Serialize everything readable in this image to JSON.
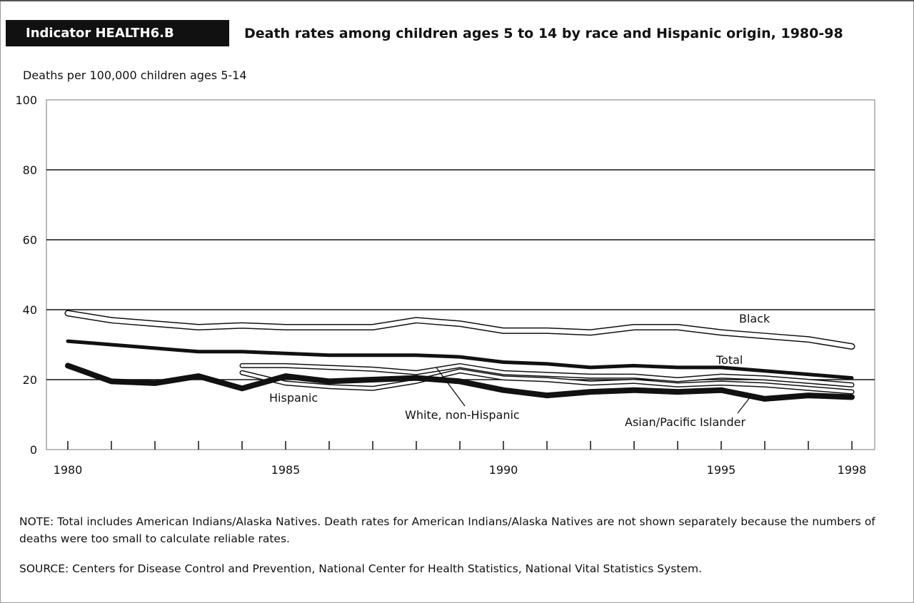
{
  "header": {
    "indicator": "Indicator HEALTH6.B",
    "title": "Death rates among children ages 5 to 14 by race and Hispanic origin, 1980-98"
  },
  "chart_data": {
    "type": "line",
    "ylabel": "Deaths per 100,000 children ages 5-14",
    "ylim": [
      0,
      100
    ],
    "yticks": [
      0,
      20,
      40,
      60,
      80,
      100
    ],
    "xlim": [
      1980,
      1998
    ],
    "xtick_labels": [
      "1980",
      "1985",
      "1990",
      "1995",
      "1998"
    ],
    "grid": true,
    "series": [
      {
        "name": "Black",
        "color": "#ffffff",
        "x": [
          1980,
          1981,
          1982,
          1983,
          1984,
          1985,
          1986,
          1987,
          1988,
          1989,
          1990,
          1991,
          1992,
          1993,
          1994,
          1995,
          1996,
          1997,
          1998
        ],
        "values": [
          39,
          37,
          36,
          35,
          35.5,
          35,
          35,
          35,
          37,
          36,
          34,
          34,
          33.5,
          35,
          35,
          33.5,
          32.5,
          31.5,
          29.5
        ]
      },
      {
        "name": "Total",
        "color": "#111111",
        "x": [
          1980,
          1981,
          1982,
          1983,
          1984,
          1985,
          1986,
          1987,
          1988,
          1989,
          1990,
          1991,
          1992,
          1993,
          1994,
          1995,
          1996,
          1997,
          1998
        ],
        "values": [
          31,
          30,
          29,
          28,
          28,
          27.5,
          27,
          27,
          27,
          26.5,
          25,
          24.5,
          23.5,
          24,
          23.5,
          23.5,
          22.5,
          21.5,
          20.5
        ]
      },
      {
        "name": "Hispanic",
        "color": "#ffffff",
        "x": [
          1984,
          1985,
          1986,
          1987,
          1988,
          1989,
          1990,
          1991,
          1992,
          1993,
          1994,
          1995,
          1996,
          1997,
          1998
        ],
        "values": [
          24,
          24,
          23.5,
          23,
          22,
          24,
          22,
          21.5,
          21,
          21,
          20,
          21,
          20.5,
          19.5,
          18.5
        ]
      },
      {
        "name": "White, non-Hispanic",
        "color": "#ffffff",
        "x": [
          1984,
          1985,
          1986,
          1987,
          1988,
          1989,
          1990,
          1991,
          1992,
          1993,
          1994,
          1995,
          1996,
          1997,
          1998
        ],
        "values": [
          22,
          19,
          18,
          17.5,
          19.5,
          22.5,
          20.5,
          20,
          19,
          19.5,
          18.5,
          19,
          18.5,
          17.5,
          16.5
        ]
      },
      {
        "name": "Asian/Pacific Islander",
        "color": "#111111",
        "x": [
          1980,
          1981,
          1982,
          1983,
          1984,
          1985,
          1986,
          1987,
          1988,
          1989,
          1990,
          1991,
          1992,
          1993,
          1994,
          1995,
          1996,
          1997,
          1998
        ],
        "values": [
          24,
          19.5,
          19,
          21,
          17.5,
          21,
          19.5,
          20,
          20.5,
          19.5,
          17,
          15.5,
          16.5,
          17,
          16.5,
          17,
          14.5,
          15.5,
          15
        ]
      }
    ],
    "labels": [
      {
        "name": "Black",
        "text": "Black"
      },
      {
        "name": "Total",
        "text": "Total"
      },
      {
        "name": "Hispanic",
        "text": "Hispanic"
      },
      {
        "name": "White, non-Hispanic",
        "text": "White, non-Hispanic"
      },
      {
        "name": "Asian/Pacific Islander",
        "text": "Asian/Pacific Islander"
      }
    ]
  },
  "footer": {
    "note": "NOTE: Total includes American Indians/Alaska Natives. Death rates for American Indians/Alaska Natives are not shown separately because the numbers of deaths were too small to calculate reliable rates.",
    "source": "SOURCE: Centers for Disease Control and Prevention, National Center for Health Statistics, National Vital Statistics System."
  }
}
